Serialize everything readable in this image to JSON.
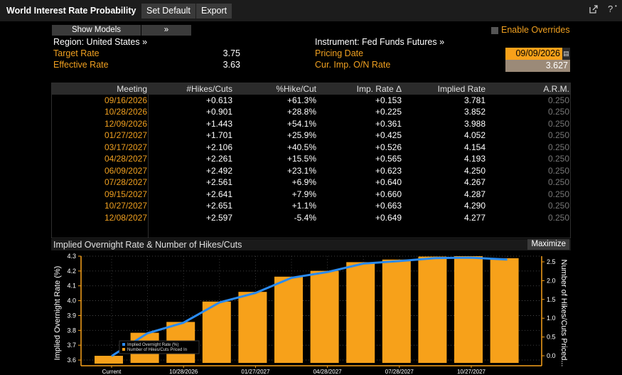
{
  "titlebar": {
    "title": "World Interest Rate Probability",
    "set_default": "Set Default",
    "export": "Export",
    "icons": [
      "external-link-icon",
      "help-icon"
    ]
  },
  "form": {
    "show_models": "Show Models",
    "models_arrow": "»",
    "enable_overrides": "Enable Overrides",
    "region_label": "Region: United States »",
    "instrument_label": "Instrument: Fed Funds Futures »",
    "target_rate_label": "Target Rate",
    "target_rate_value": "3.75",
    "effective_rate_label": "Effective Rate",
    "effective_rate_value": "3.63",
    "pricing_date_label": "Pricing Date",
    "pricing_date_value": "09/09/2026",
    "cur_imp_label": "Cur. Imp. O/N Rate",
    "cur_imp_value": "3.627"
  },
  "table": {
    "headers": [
      "Meeting",
      "#Hikes/Cuts",
      "%Hike/Cut",
      "Imp. Rate Δ",
      "Implied Rate",
      "A.R.M."
    ],
    "rows": [
      [
        "09/16/2026",
        "+0.613",
        "+61.3%",
        "+0.153",
        "3.781",
        "0.250"
      ],
      [
        "10/28/2026",
        "+0.901",
        "+28.8%",
        "+0.225",
        "3.852",
        "0.250"
      ],
      [
        "12/09/2026",
        "+1.443",
        "+54.1%",
        "+0.361",
        "3.988",
        "0.250"
      ],
      [
        "01/27/2027",
        "+1.701",
        "+25.9%",
        "+0.425",
        "4.052",
        "0.250"
      ],
      [
        "03/17/2027",
        "+2.106",
        "+40.5%",
        "+0.526",
        "4.154",
        "0.250"
      ],
      [
        "04/28/2027",
        "+2.261",
        "+15.5%",
        "+0.565",
        "4.193",
        "0.250"
      ],
      [
        "06/09/2027",
        "+2.492",
        "+23.1%",
        "+0.623",
        "4.250",
        "0.250"
      ],
      [
        "07/28/2027",
        "+2.561",
        "+6.9%",
        "+0.640",
        "4.267",
        "0.250"
      ],
      [
        "09/15/2027",
        "+2.641",
        "+7.9%",
        "+0.660",
        "4.287",
        "0.250"
      ],
      [
        "10/27/2027",
        "+2.651",
        "+1.1%",
        "+0.663",
        "4.290",
        "0.250"
      ],
      [
        "12/08/2027",
        "+2.597",
        "-5.4%",
        "+0.649",
        "4.277",
        "0.250"
      ]
    ]
  },
  "chart_panel": {
    "title": "Implied Overnight Rate & Number of Hikes/Cuts",
    "maximize": "Maximize"
  },
  "chart_data": {
    "type": "bar",
    "categories": [
      "Current",
      "09/16/2026",
      "10/28/2026",
      "12/09/2026",
      "01/27/2027",
      "03/17/2027",
      "04/28/2027",
      "06/09/2027",
      "07/28/2027",
      "09/15/2027",
      "10/27/2027",
      "12/08/2027"
    ],
    "x_tick_labels": [
      "Current",
      "10/28/2026",
      "01/27/2027",
      "04/28/2027",
      "07/28/2027",
      "10/27/2027"
    ],
    "series": [
      {
        "name": "Number of Hikes/Cuts Priced In",
        "axis": "right",
        "kind": "bar",
        "values": [
          0,
          0.613,
          0.901,
          1.443,
          1.701,
          2.106,
          2.261,
          2.492,
          2.561,
          2.641,
          2.651,
          2.597
        ]
      },
      {
        "name": "Implied Overnight Rate (%)",
        "axis": "left",
        "kind": "line",
        "values": [
          3.627,
          3.781,
          3.852,
          3.988,
          4.052,
          4.154,
          4.193,
          4.25,
          4.267,
          4.287,
          4.29,
          4.277
        ]
      }
    ],
    "ylabel": "Implied Overnight Rate (%)",
    "y2label": "Number of Hikes/Cuts Priced...",
    "ylim": [
      3.6,
      4.3
    ],
    "y_ticks": [
      "4.3",
      "4.2",
      "4.1",
      "4.0",
      "3.9",
      "3.8",
      "3.7",
      "3.6"
    ],
    "y2lim": [
      0.0,
      2.5
    ],
    "y2_ticks": [
      "2.5",
      "2.0",
      "1.5",
      "1.0",
      "0.5",
      "0.0"
    ],
    "legend_labels": [
      "Implied Overnight Rate (%)",
      "Number of Hikes/Cuts Priced In"
    ],
    "legend_position": "bottom-left",
    "colors": {
      "bar": "#f7a11a",
      "line": "#2a8bf2",
      "axis": "#f7a11a",
      "text": "#ffffff"
    }
  }
}
